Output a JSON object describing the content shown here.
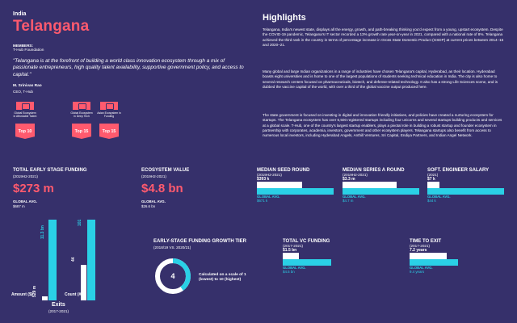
{
  "header": {
    "country": "India",
    "title": "Telangana",
    "members_label": "MEMBERS:",
    "members_value": "T-Hub Foundation",
    "quote": "\"Telangana is at the forefront of building a world class innovation ecosystem through a mix of passionate entrepreneurs, high quality talent availability, supportive government policy, and access to capital.\"",
    "author": "M. Srinivas Rao",
    "author_role": "CEO, T-Hub"
  },
  "rankings": [
    {
      "label": "Global Ecosystem in Affordable Talent",
      "badge": "Top 10"
    },
    {
      "label": "Global Ecosystem in Deep Tech",
      "badge": "Top 15"
    },
    {
      "label": "Asian Ecosystem in Funding",
      "badge": "Top 15"
    }
  ],
  "highlights": {
    "title": "Highlights",
    "p1": "Telangana, India's newest state, displays all the energy, growth, and path-breaking thinking you'd expect from a young, upstart ecosystem. Despite the COVID-19 pandemic, Telangana's IT sector recorded a 13% growth rate year-on-year in 2021, compared with a national rate of 8%. Telangana achieved the third rank in the country in terms of percentage increase in Gross State Domestic Product (GSDP) at current prices between 2014–15 and 2020–21.",
    "p2": "Many global and large Indian organizations in a range of industries have chosen Telangana's capital, Hyderabad, as their location. Hyderabad boasts eight universities and is home to one of the largest populations of students seeking technical education in India. The city is also home to several research centers focused on pharmaceuticals, biotech, and defense-related technology. It also has a strong Life Sciences scene, and is dubbed the vaccine capital of the world, with over a third of the global vaccine output produced here.",
    "p3": "The state government is focused on investing in digital and innovation friendly initiatives, and policies have created a nurturing ecosystem for startups. The Telangana ecosystem has over 6,500 registered startups including four unicorns and several startups building products and services at a global scale. T-Hub, one of the country's largest startup enablers, plays a pivotal role in building a robust startup and founder ecosystem in partnership with corporates, academia, investors, government and other ecosystem players. Telangana startups also benefit from access to numerous local investors, including Hyderabad Angels, Anthill Ventures, Sri Capital, Endiya Partners, and Indian Angel Network."
  },
  "stats": {
    "early_funding": {
      "title": "TOTAL EARLY STAGE FUNDING",
      "period": "(2019H2-2021)",
      "value": "$273 m",
      "ga_label": "GLOBAL AVG.",
      "ga_value": "$687 m"
    },
    "ecosystem_value": {
      "title": "ECOSYSTEM VALUE",
      "period": "(2019H2-2021)",
      "value": "$4.8 bn",
      "ga_label": "GLOBAL AVG.",
      "ga_value": "$26.6 bn"
    },
    "median_seed": {
      "title": "MEDIAN SEED ROUND",
      "period": "(2019H2-2021)",
      "value": "$393 k",
      "ga_label": "GLOBAL AVG.",
      "ga_value": "$671 k",
      "fraction": 0.59
    },
    "median_series_a": {
      "title": "MEDIAN SERIES A ROUND",
      "period": "(2019H2-2021)",
      "value": "$3.3 m",
      "ga_label": "GLOBAL AVG.",
      "ga_value": "$4.7 m",
      "fraction": 0.7
    },
    "software_salary": {
      "title": "SOFT. ENGINEER SALARY",
      "period": "(2021)",
      "value": "$7 k",
      "ga_label": "GLOBAL AVG.",
      "ga_value": "$44 k",
      "fraction": 0.16
    },
    "growth_tier": {
      "title": "EARLY-STAGE FUNDING GROWTH TIER",
      "period": "(2018/19 VS. 2020/21)",
      "value": "4",
      "note": "Calculated on a scale of 1 (lowest) to 10 (highest)",
      "fraction": 0.4
    },
    "total_vc": {
      "title": "TOTAL VC FUNDING",
      "period": "(2017-2021)",
      "value": "$1.5 bn",
      "ga_label": "GLOBAL AVG.",
      "ga_value": "$4.5 bn",
      "fraction": 0.33
    },
    "time_to_exit": {
      "title": "TIME TO EXIT",
      "period": "(2017-2021)",
      "value": "7.2 years",
      "ga_label": "GLOBAL AVG.",
      "ga_value": "9.4 years",
      "fraction": 0.77
    }
  },
  "exits": {
    "title": "Exits",
    "period": "(2017-2021)",
    "amount_label": "Amount ($)",
    "count_label": "Count (#)",
    "amount_local": "529 m",
    "amount_global": "11.3 bn",
    "count_local": "44",
    "count_global": "101",
    "amount_fraction": 0.047,
    "count_fraction": 0.436
  }
}
